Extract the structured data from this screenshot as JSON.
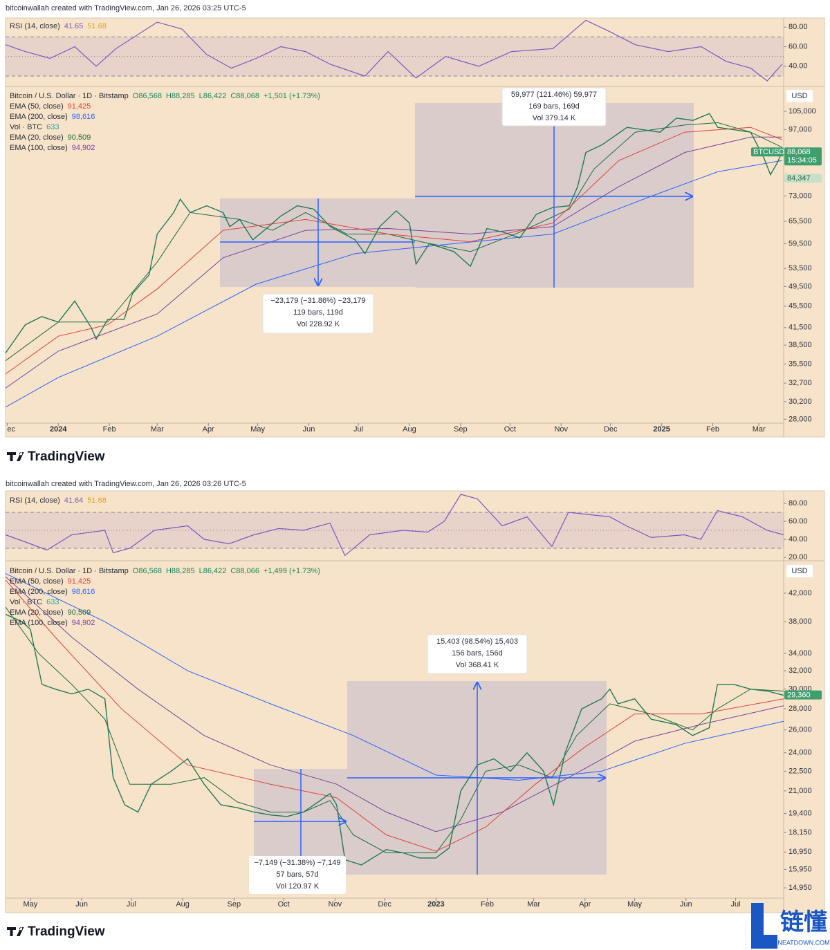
{
  "chart_data": [
    {
      "type": "line",
      "header": "bitcoinwallah created with TradingView.com, Jan 26, 2026 03:25 UTC-5",
      "title": "Bitcoin / U.S. Dollar · 1D · Bitstamp",
      "ohlc": [
        "O86,568",
        "H88,285",
        "L86,422",
        "C88,068",
        "+1,501 (+1.73%)"
      ],
      "currency": "USD",
      "log_scale": true,
      "xlim": [
        -32,
        440
      ],
      "xticks": [
        {
          "value": -31,
          "label": "ec"
        },
        {
          "value": 0,
          "label": "2024"
        },
        {
          "value": 31,
          "label": "Feb"
        },
        {
          "value": 60,
          "label": "Mar"
        },
        {
          "value": 91,
          "label": "Apr"
        },
        {
          "value": 121,
          "label": "May"
        },
        {
          "value": 152,
          "label": "Jun"
        },
        {
          "value": 182,
          "label": "Jul"
        },
        {
          "value": 213,
          "label": "Aug"
        },
        {
          "value": 244,
          "label": "Sep"
        },
        {
          "value": 274,
          "label": "Oct"
        },
        {
          "value": 305,
          "label": "Nov"
        },
        {
          "value": 335,
          "label": "Dec"
        },
        {
          "value": 366,
          "label": "2025"
        },
        {
          "value": 397,
          "label": "Feb"
        },
        {
          "value": 425,
          "label": "Mar"
        }
      ],
      "ylim": [
        27700,
        115800
      ],
      "yticks": [
        {
          "value": 105000,
          "label": "105,000"
        },
        {
          "value": 97000,
          "label": "97,000"
        },
        {
          "value": 73000,
          "label": "73,000"
        },
        {
          "value": 65500,
          "label": "65,500"
        },
        {
          "value": 59500,
          "label": "59,500"
        },
        {
          "value": 53500,
          "label": "53,500"
        },
        {
          "value": 49500,
          "label": "49,500"
        },
        {
          "value": 45500,
          "label": "45,500"
        },
        {
          "value": 41500,
          "label": "41,500"
        },
        {
          "value": 38500,
          "label": "38,500"
        },
        {
          "value": 35500,
          "label": "35,500"
        },
        {
          "value": 32700,
          "label": "32,700"
        },
        {
          "value": 30200,
          "label": "30,200"
        },
        {
          "value": 28000,
          "label": "28,000"
        }
      ],
      "series": [
        {
          "name": "Bitcoin / U.S. Dollar",
          "color": "#1f7a55",
          "x": [
            -32,
            -20,
            -10,
            0,
            10,
            20,
            23,
            30,
            40,
            45,
            55,
            60,
            70,
            74,
            80,
            90,
            100,
            104,
            110,
            118,
            125,
            135,
            145,
            155,
            165,
            180,
            186,
            195,
            205,
            213,
            217,
            225,
            240,
            250,
            260,
            270,
            280,
            290,
            300,
            310,
            315,
            320,
            330,
            345,
            355,
            365,
            375,
            385,
            395,
            400,
            410,
            420,
            428,
            432,
            436,
            439
          ],
          "values": [
            37200,
            42000,
            43500,
            42500,
            46500,
            41500,
            39500,
            43000,
            43000,
            48000,
            52000,
            62000,
            68000,
            72000,
            68000,
            70000,
            68000,
            64000,
            66000,
            60500,
            63000,
            67000,
            70000,
            69000,
            64000,
            60500,
            57000,
            64000,
            68500,
            65000,
            54500,
            59500,
            57500,
            54000,
            63500,
            62500,
            61000,
            67500,
            69500,
            70000,
            76000,
            88000,
            91000,
            98000,
            97000,
            96000,
            102000,
            101000,
            104000,
            98000,
            97000,
            96000,
            86000,
            80000,
            84000,
            88068
          ]
        },
        {
          "name": "EMA (50, close)",
          "last": "91,425",
          "color": "#e0413a",
          "x": [
            -32,
            0,
            30,
            60,
            100,
            150,
            200,
            250,
            300,
            340,
            380,
            420,
            439
          ],
          "values": [
            34000,
            40000,
            42000,
            49000,
            63000,
            66000,
            62000,
            60000,
            65000,
            85000,
            96000,
            98000,
            93000
          ]
        },
        {
          "name": "EMA (200, close)",
          "last": "98,616",
          "color": "#2962ff",
          "x": [
            -32,
            0,
            60,
            120,
            180,
            240,
            300,
            360,
            400,
            439
          ],
          "values": [
            29500,
            33500,
            40000,
            50000,
            57000,
            59500,
            62000,
            73000,
            81000,
            85000
          ]
        },
        {
          "name": "EMA (20, close)",
          "last": "90,509",
          "color": "#1b6b3a",
          "x": [
            -32,
            0,
            30,
            60,
            80,
            110,
            130,
            150,
            175,
            200,
            220,
            250,
            280,
            310,
            325,
            350,
            380,
            400,
            420,
            439
          ],
          "values": [
            36000,
            42500,
            42500,
            55000,
            68000,
            66000,
            63000,
            68000,
            62000,
            62000,
            60000,
            57500,
            62500,
            69000,
            82000,
            96000,
            99000,
            100000,
            96000,
            90000
          ]
        },
        {
          "name": "EMA (100, close)",
          "last": "94,902",
          "color": "#7b3fa0",
          "x": [
            -32,
            0,
            60,
            100,
            150,
            200,
            250,
            300,
            340,
            380,
            420,
            439
          ],
          "values": [
            32000,
            37500,
            44000,
            56000,
            63000,
            63500,
            62000,
            64000,
            76000,
            88000,
            94000,
            94000
          ]
        }
      ],
      "volume": {
        "name": "Vol · BTC",
        "value": "633",
        "color": "#26a69a"
      },
      "price_labels": [
        {
          "value": 88068,
          "label": "88,068",
          "symbol": "BTCUSD",
          "countdown": "15:34:05"
        },
        {
          "value": 84347,
          "label": "84,347"
        }
      ],
      "rsi": {
        "name": "RSI (14, close)",
        "value": "41.65",
        "ma": "51.68",
        "color": "#7e57c2",
        "ma_color": "#d9a521",
        "ylim": [
          21.5,
          87.9
        ],
        "yticks": [
          {
            "value": 80,
            "label": "80.00"
          },
          {
            "value": 60,
            "label": "60.00"
          },
          {
            "value": 40,
            "label": "40.00"
          }
        ],
        "bands": [
          70,
          50,
          30
        ],
        "x": [
          -32,
          -20,
          -5,
          10,
          23,
          35,
          60,
          75,
          90,
          105,
          120,
          135,
          150,
          165,
          186,
          200,
          217,
          235,
          255,
          275,
          300,
          320,
          335,
          350,
          370,
          390,
          405,
          420,
          430,
          439
        ],
        "values": [
          62,
          55,
          48,
          60,
          40,
          58,
          85,
          78,
          52,
          38,
          48,
          60,
          55,
          42,
          30,
          55,
          28,
          50,
          40,
          55,
          58,
          87,
          75,
          62,
          55,
          60,
          45,
          38,
          25,
          42
        ]
      },
      "measures": [
        {
          "lines": [
            "−23,179 (−31.86%) −23,179",
            "119 bars, 119d",
            "Vol 228.92 K"
          ]
        },
        {
          "lines": [
            "59,977 (121.46%) 59,977",
            "169 bars, 169d",
            "Vol 379.14 K"
          ]
        }
      ],
      "logo": "TradingView"
    },
    {
      "type": "line",
      "header": "bitcoinwallah created with TradingView.com, Jan 26, 2026 03:26 UTC-5",
      "title": "Bitcoin / U.S. Dollar · 1D · Bitstamp",
      "ohlc": [
        "O86,568",
        "H88,285",
        "L86,422",
        "C88,066",
        "+1,499 (+1.73%)"
      ],
      "currency": "USD",
      "log_scale": true,
      "xlim": [
        -260,
        210
      ],
      "xticks": [
        {
          "value": -245,
          "label": "May"
        },
        {
          "value": -214,
          "label": "Jun"
        },
        {
          "value": -184,
          "label": "Jul"
        },
        {
          "value": -153,
          "label": "Aug"
        },
        {
          "value": -122,
          "label": "Sep"
        },
        {
          "value": -92,
          "label": "Oct"
        },
        {
          "value": -61,
          "label": "Nov"
        },
        {
          "value": -31,
          "label": "Dec"
        },
        {
          "value": 0,
          "label": "2023"
        },
        {
          "value": 31,
          "label": "Feb"
        },
        {
          "value": 59,
          "label": "Mar"
        },
        {
          "value": 90,
          "label": "Apr"
        },
        {
          "value": 120,
          "label": "May"
        },
        {
          "value": 151,
          "label": "Jun"
        },
        {
          "value": 181,
          "label": "Jul"
        }
      ],
      "ylim": [
        14560,
        46600
      ],
      "yticks": [
        {
          "value": 42000,
          "label": "42,000"
        },
        {
          "value": 38000,
          "label": "38,000"
        },
        {
          "value": 34000,
          "label": "34,000"
        },
        {
          "value": 32000,
          "label": "32,000"
        },
        {
          "value": 30000,
          "label": "30,000"
        },
        {
          "value": 28000,
          "label": "28,000"
        },
        {
          "value": 26000,
          "label": "26,000"
        },
        {
          "value": 24000,
          "label": "24,000"
        },
        {
          "value": 22500,
          "label": "22,500"
        },
        {
          "value": 21000,
          "label": "21,000"
        },
        {
          "value": 19400,
          "label": "19,400"
        },
        {
          "value": 18150,
          "label": "18,150"
        },
        {
          "value": 16950,
          "label": "16,950"
        },
        {
          "value": 15950,
          "label": "15,950"
        },
        {
          "value": 14950,
          "label": "14,950"
        }
      ],
      "series": [
        {
          "name": "Bitcoin / U.S. Dollar",
          "color": "#1f7a55",
          "x": [
            -260,
            -250,
            -245,
            -238,
            -230,
            -220,
            -210,
            -200,
            -195,
            -188,
            -180,
            -172,
            -160,
            -150,
            -140,
            -130,
            -120,
            -110,
            -100,
            -90,
            -80,
            -70,
            -64,
            -60,
            -55,
            -45,
            -30,
            -20,
            -10,
            0,
            8,
            15,
            25,
            35,
            45,
            55,
            65,
            71,
            78,
            88,
            100,
            105,
            110,
            120,
            130,
            145,
            155,
            165,
            170,
            180,
            190,
            200,
            210
          ],
          "values": [
            39000,
            38000,
            37000,
            30500,
            30000,
            29500,
            30000,
            29000,
            22000,
            20000,
            19500,
            21500,
            22500,
            23500,
            21500,
            20000,
            19800,
            19500,
            19300,
            19200,
            19500,
            20300,
            20800,
            20000,
            16500,
            16200,
            17100,
            16900,
            16600,
            16600,
            17200,
            21000,
            23000,
            23500,
            22500,
            24000,
            22500,
            20000,
            24000,
            28000,
            29000,
            30000,
            28500,
            29000,
            27000,
            26500,
            25500,
            26200,
            30500,
            30500,
            30000,
            29800,
            29360
          ]
        },
        {
          "name": "EMA (50, close)",
          "last": "91,425",
          "color": "#e0413a",
          "x": [
            -260,
            -230,
            -190,
            -150,
            -100,
            -60,
            -30,
            0,
            30,
            60,
            90,
            120,
            160,
            210
          ],
          "values": [
            44000,
            36000,
            28000,
            23000,
            21500,
            20500,
            18000,
            17000,
            18500,
            21500,
            24500,
            27500,
            27500,
            29000
          ]
        },
        {
          "name": "EMA (200, close)",
          "last": "98,616",
          "color": "#2962ff",
          "x": [
            -260,
            -200,
            -150,
            -100,
            -50,
            0,
            50,
            100,
            150,
            210
          ],
          "values": [
            45000,
            38000,
            32000,
            28500,
            25500,
            22200,
            21800,
            22500,
            24800,
            26800
          ]
        },
        {
          "name": "EMA (20, close)",
          "last": "90,509",
          "color": "#1b6b3a",
          "x": [
            -260,
            -240,
            -220,
            -200,
            -185,
            -160,
            -140,
            -120,
            -100,
            -80,
            -64,
            -50,
            -30,
            0,
            15,
            30,
            50,
            70,
            85,
            105,
            130,
            155,
            170,
            190,
            210
          ],
          "values": [
            40000,
            34000,
            30500,
            27000,
            21500,
            21500,
            22000,
            20200,
            19500,
            19500,
            20300,
            18000,
            16900,
            16900,
            19000,
            22500,
            23000,
            22000,
            25500,
            28500,
            27500,
            26000,
            28000,
            30000,
            29800
          ]
        },
        {
          "name": "EMA (100, close)",
          "last": "94,902",
          "color": "#7b3fa0",
          "x": [
            -260,
            -220,
            -180,
            -140,
            -100,
            -60,
            -30,
            0,
            40,
            80,
            120,
            160,
            210
          ],
          "values": [
            44500,
            36000,
            30000,
            25500,
            23000,
            21500,
            19500,
            18200,
            19500,
            22000,
            25000,
            26500,
            28300
          ]
        }
      ],
      "volume": {
        "name": "Vol · BTC",
        "value": "633",
        "color": "#26a69a"
      },
      "price_labels": [
        {
          "value": 29360,
          "label": "29,360"
        }
      ],
      "rsi": {
        "name": "RSI (14, close)",
        "value": "41.64",
        "ma": "51.68",
        "color": "#7e57c2",
        "ma_color": "#d9a521",
        "ylim": [
          18.5,
          92.3
        ],
        "yticks": [
          {
            "value": 80,
            "label": "80.00"
          },
          {
            "value": 60,
            "label": "60.00"
          },
          {
            "value": 40,
            "label": "40.00"
          },
          {
            "value": 20,
            "label": "20.00"
          }
        ],
        "bands": [
          70,
          50,
          30
        ],
        "x": [
          -260,
          -245,
          -235,
          -220,
          -200,
          -195,
          -185,
          -170,
          -150,
          -140,
          -125,
          -110,
          -95,
          -80,
          -64,
          -55,
          -40,
          -20,
          -5,
          5,
          15,
          25,
          40,
          55,
          70,
          80,
          90,
          105,
          115,
          130,
          150,
          160,
          170,
          185,
          200,
          210
        ],
        "values": [
          45,
          35,
          28,
          45,
          50,
          25,
          30,
          50,
          55,
          40,
          35,
          45,
          52,
          50,
          58,
          22,
          45,
          50,
          48,
          60,
          90,
          85,
          55,
          65,
          32,
          70,
          68,
          65,
          55,
          42,
          45,
          40,
          72,
          65,
          50,
          45
        ]
      },
      "measures": [
        {
          "lines": [
            "−7,149 (−31.38%) −7,149",
            "57 bars, 57d",
            "Vol 120.97 K"
          ]
        },
        {
          "lines": [
            "15,403 (98.54%) 15,403",
            "156 bars, 156d",
            "Vol 368.41 K"
          ]
        }
      ],
      "logo": "TradingView"
    }
  ],
  "watermark": {
    "title": "链懂",
    "url": "NEATDOWN.COM"
  }
}
